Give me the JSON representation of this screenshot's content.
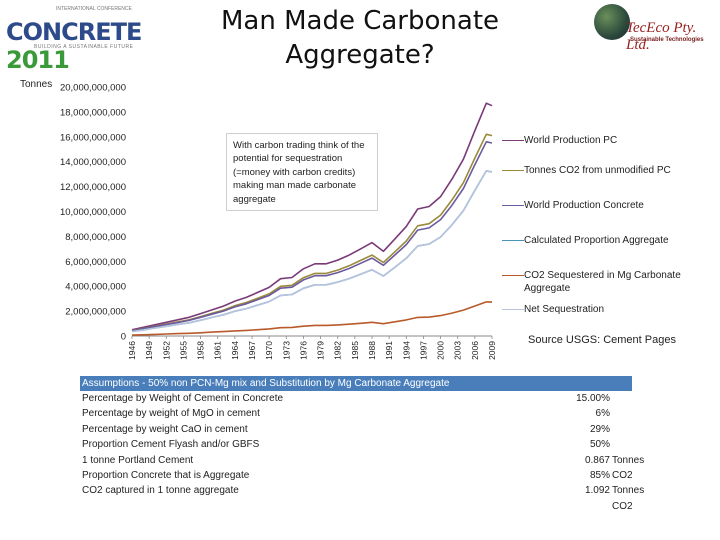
{
  "header": {
    "title": "Man Made Carbonate Aggregate?",
    "logo_left_top": "INTERNATIONAL CONFERENCE",
    "logo_left_brand": "CONCRETE",
    "logo_left_year": "2011",
    "logo_left_sub": "BUILDING A SUSTAINABLE FUTURE",
    "logo_right_name": "TecEco Pty. Ltd.",
    "logo_right_tag": "Sustainable Technologies"
  },
  "y_unit_label": "Tonnes",
  "callout_text": "With carbon trading think of the potential for sequestration (=money with carbon credits) making man made carbonate aggregate",
  "source": "Source USGS: Cement Pages",
  "colors": {
    "world_pc": "#7a3a78",
    "co2_unmodified": "#9a8a3a",
    "world_concrete": "#6a5aa0",
    "calculated_aggregate": "#4a92b8",
    "co2_sequestered": "#b85a2a",
    "net_sequestration": "#b8c4de",
    "table_header": "#4a7ebb"
  },
  "chart_data": {
    "type": "line",
    "title": "",
    "xlabel": "",
    "ylabel": "Tonnes",
    "ylim": [
      0,
      20000000000
    ],
    "yticks": [
      "0",
      "2,000,000,000",
      "4,000,000,000",
      "6,000,000,000",
      "8,000,000,000",
      "10,000,000,000",
      "12,000,000,000",
      "14,000,000,000",
      "16,000,000,000",
      "18,000,000,000",
      "20,000,000,000"
    ],
    "x": [
      1946,
      1948,
      1950,
      1952,
      1954,
      1956,
      1958,
      1960,
      1962,
      1964,
      1966,
      1968,
      1970,
      1972,
      1974,
      1976,
      1978,
      1980,
      1982,
      1984,
      1986,
      1988,
      1990,
      1992,
      1994,
      1996,
      1998,
      2000,
      2002,
      2004,
      2006,
      2008,
      2009
    ],
    "xticks": [
      "1946",
      "1949",
      "1952",
      "1955",
      "1958",
      "1961",
      "1964",
      "1967",
      "1970",
      "1973",
      "1976",
      "1979",
      "1982",
      "1985",
      "1988",
      "1991",
      "1994",
      "1997",
      "2000",
      "2003",
      "2006",
      "2009"
    ],
    "series": [
      {
        "name": "World Production PC",
        "key": "world_pc",
        "values": [
          0.5,
          0.7,
          0.9,
          1.1,
          1.3,
          1.5,
          1.8,
          2.1,
          2.4,
          2.8,
          3.1,
          3.5,
          3.9,
          4.6,
          4.7,
          5.4,
          5.8,
          5.8,
          6.1,
          6.5,
          7.0,
          7.5,
          6.8,
          7.8,
          8.8,
          10.2,
          10.4,
          11.2,
          12.6,
          14.2,
          16.5,
          18.7,
          18.5
        ]
      },
      {
        "name": "Tonnes CO2 from unmodified PC",
        "key": "co2_unmodified",
        "values": [
          0.44,
          0.6,
          0.78,
          0.96,
          1.13,
          1.3,
          1.56,
          1.82,
          2.08,
          2.43,
          2.69,
          3.04,
          3.38,
          3.99,
          4.07,
          4.68,
          5.03,
          5.03,
          5.29,
          5.64,
          6.07,
          6.5,
          5.9,
          6.76,
          7.63,
          8.85,
          9.02,
          9.71,
          10.93,
          12.31,
          14.3,
          16.2,
          16.1
        ]
      },
      {
        "name": "World Production Concrete",
        "key": "world_concrete",
        "values": [
          0.42,
          0.58,
          0.75,
          0.92,
          1.08,
          1.25,
          1.5,
          1.75,
          2.0,
          2.34,
          2.59,
          2.92,
          3.25,
          3.84,
          3.92,
          4.51,
          4.84,
          4.84,
          5.09,
          5.42,
          5.84,
          6.26,
          5.68,
          6.51,
          7.34,
          8.51,
          8.68,
          9.35,
          10.51,
          11.85,
          13.77,
          15.6,
          15.5
        ]
      },
      {
        "name": "Calculated Proportion Aggregate",
        "key": "calculated_aggregate",
        "values": [
          0.36,
          0.49,
          0.64,
          0.78,
          0.92,
          1.06,
          1.27,
          1.49,
          1.7,
          1.99,
          2.2,
          2.48,
          2.76,
          3.26,
          3.33,
          3.83,
          4.11,
          4.11,
          4.33,
          4.61,
          4.96,
          5.32,
          4.82,
          5.53,
          6.24,
          7.23,
          7.38,
          7.95,
          8.93,
          10.07,
          11.7,
          13.26,
          13.18
        ]
      },
      {
        "name": "CO2 Sequestered in Mg Carbonate Aggregate",
        "key": "co2_sequestered",
        "values": [
          0.07,
          0.1,
          0.13,
          0.16,
          0.19,
          0.22,
          0.26,
          0.31,
          0.35,
          0.41,
          0.45,
          0.51,
          0.57,
          0.67,
          0.69,
          0.79,
          0.85,
          0.85,
          0.89,
          0.95,
          1.02,
          1.1,
          0.99,
          1.14,
          1.29,
          1.49,
          1.52,
          1.64,
          1.84,
          2.08,
          2.41,
          2.74,
          2.72
        ]
      },
      {
        "name": "Net Sequestration",
        "key": "net_sequestration",
        "values": [
          0.36,
          0.49,
          0.64,
          0.78,
          0.92,
          1.06,
          1.27,
          1.49,
          1.7,
          1.99,
          2.2,
          2.48,
          2.76,
          3.26,
          3.33,
          3.83,
          4.11,
          4.11,
          4.33,
          4.61,
          4.96,
          5.32,
          4.82,
          5.53,
          6.24,
          7.23,
          7.38,
          7.95,
          8.93,
          10.07,
          11.7,
          13.26,
          13.18
        ]
      }
    ],
    "value_scale": "billions of tonnes"
  },
  "assumptions": {
    "header": "Assumptions - 50% non PCN-Mg mix and Substitution by Mg Carbonate Aggregate",
    "rows": [
      {
        "label": "Percentage by Weight of Cement in Concrete",
        "value": "15.00%",
        "unit": ""
      },
      {
        "label": "Percentage by weight of MgO in cement",
        "value": "6%",
        "unit": ""
      },
      {
        "label": "Percentage by weight CaO in cement",
        "value": "29%",
        "unit": ""
      },
      {
        "label": "Proportion Cement Flyash and/or GBFS",
        "value": "50%",
        "unit": ""
      },
      {
        "label": "1 tonne Portland Cement",
        "value": "0.867",
        "unit": "Tonnes CO2"
      },
      {
        "label": "Proportion Concrete that is Aggregate",
        "value": "85%",
        "unit": ""
      },
      {
        "label": "CO2 captured in 1 tonne aggregate",
        "value": "1.092",
        "unit": "Tonnes CO2"
      }
    ]
  }
}
